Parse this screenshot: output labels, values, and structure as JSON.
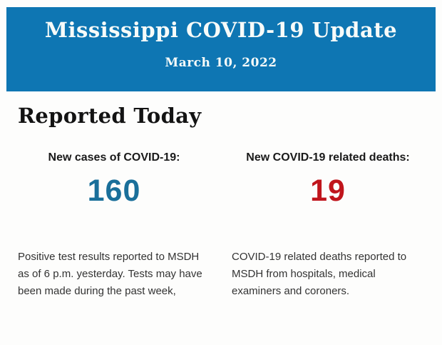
{
  "banner": {
    "title": "Mississippi COVID-19 Update",
    "date": "March 10, 2022",
    "background_color": "#0e76b3",
    "text_color": "#f7fbf9"
  },
  "section": {
    "heading": "Reported Today"
  },
  "stats": [
    {
      "label": "New cases of COVID-19:",
      "value": "160",
      "value_color": "#1a6f9a",
      "description": "Positive test results reported to MSDH as of 6 p.m. yesterday. Tests may have been made during the past week,"
    },
    {
      "label": "New COVID-19 related deaths:",
      "value": "19",
      "value_color": "#c0151c",
      "description": "COVID-19 related deaths reported to MSDH from hospitals, medical examiners and coroners."
    }
  ]
}
